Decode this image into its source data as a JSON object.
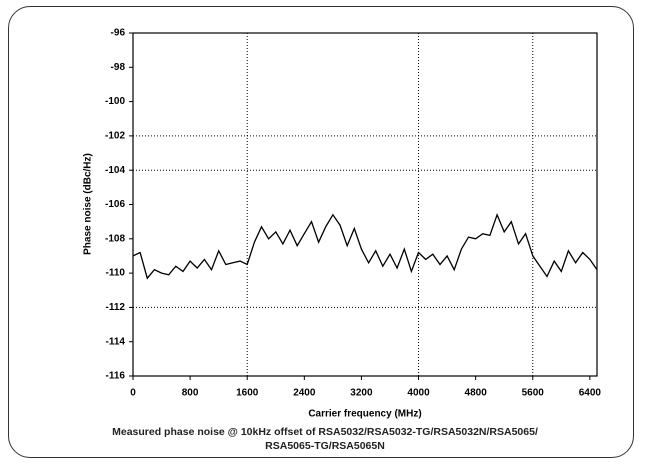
{
  "chart_data": {
    "type": "line",
    "x_label": "Carrier frequency (MHz)",
    "y_label": "Phase noise (dBc/Hz)",
    "caption": [
      "Measured phase noise @ 10kHz offset of RSA5032/RSA5032-TG/RSA5032N/RSA5065/",
      "RSA5065-TG/RSA5065N"
    ],
    "x": [
      0,
      100,
      200,
      300,
      400,
      500,
      600,
      700,
      800,
      900,
      1000,
      1100,
      1200,
      1300,
      1400,
      1500,
      1600,
      1700,
      1800,
      1900,
      2000,
      2100,
      2200,
      2300,
      2400,
      2500,
      2600,
      2700,
      2800,
      2900,
      3000,
      3100,
      3200,
      3300,
      3400,
      3500,
      3600,
      3700,
      3800,
      3900,
      4000,
      4100,
      4200,
      4300,
      4400,
      4500,
      4600,
      4700,
      4800,
      4900,
      5000,
      5100,
      5200,
      5300,
      5400,
      5500,
      5600,
      5700,
      5800,
      5900,
      6000,
      6100,
      6200,
      6300,
      6400,
      6500
    ],
    "series": [
      {
        "color": "#000000",
        "values": [
          -109.0,
          -108.8,
          -110.3,
          -109.8,
          -110.0,
          -110.1,
          -109.6,
          -109.9,
          -109.3,
          -109.7,
          -109.2,
          -109.8,
          -108.7,
          -109.5,
          -109.4,
          -109.3,
          -109.5,
          -108.2,
          -107.3,
          -108.0,
          -107.6,
          -108.3,
          -107.5,
          -108.4,
          -107.7,
          -107.0,
          -108.2,
          -107.3,
          -106.6,
          -107.2,
          -108.4,
          -107.4,
          -108.6,
          -109.4,
          -108.7,
          -109.6,
          -108.9,
          -109.7,
          -108.6,
          -109.9,
          -108.8,
          -109.2,
          -108.9,
          -109.5,
          -109.0,
          -109.8,
          -108.6,
          -107.9,
          -108.0,
          -107.7,
          -107.8,
          -106.6,
          -107.6,
          -107.0,
          -108.3,
          -107.7,
          -109.0,
          -109.6,
          -110.2,
          -109.3,
          -109.9,
          -108.7,
          -109.4,
          -108.8,
          -109.2,
          -109.8
        ]
      }
    ],
    "xlim": [
      0,
      6500
    ],
    "ylim": [
      -116,
      -96
    ],
    "xticks": [
      0,
      800,
      1600,
      2400,
      3200,
      4000,
      4800,
      5600,
      6400
    ],
    "yticks": [
      -116,
      -114,
      -112,
      -110,
      -108,
      -106,
      -104,
      -102,
      -100,
      -98,
      -96
    ],
    "grid_x": [
      1600,
      4000,
      5600
    ],
    "grid_y": [
      -112,
      -104,
      -102
    ]
  }
}
